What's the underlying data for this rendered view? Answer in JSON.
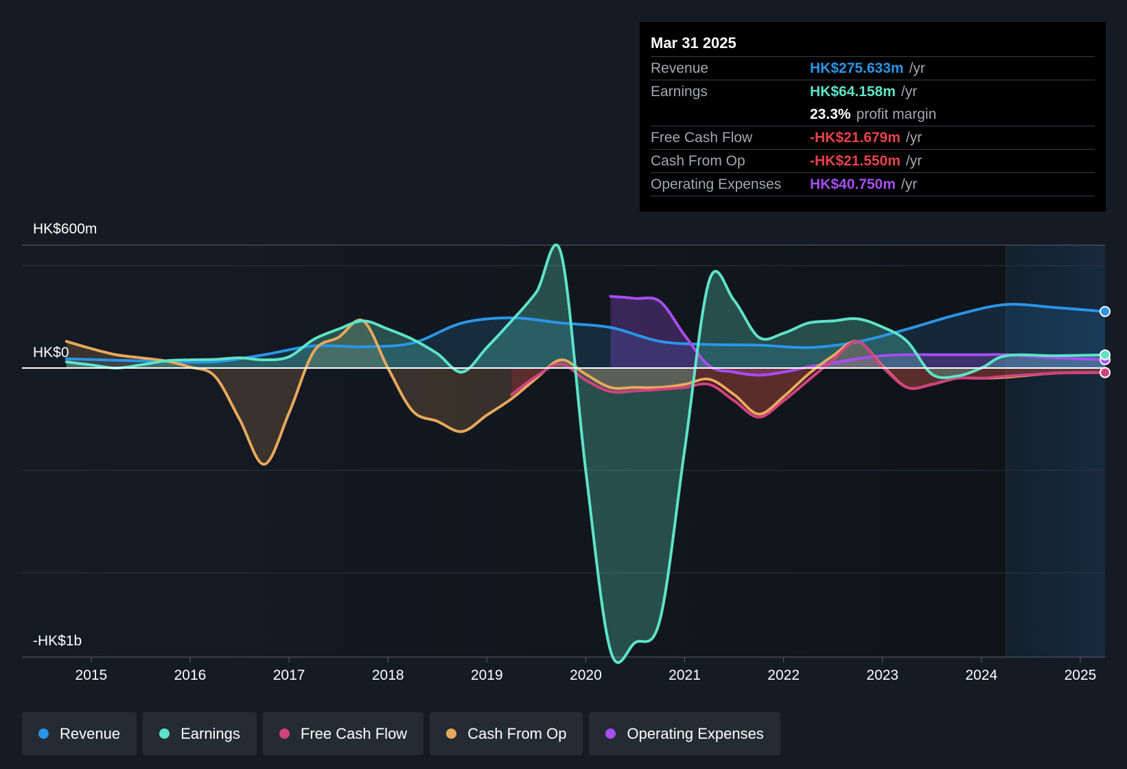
{
  "chart_data": {
    "type": "area",
    "y_axis_labels": {
      "top": "HK$600m",
      "zero": "HK$0",
      "bottom": "-HK$1b"
    },
    "ylim": [
      -1400,
      600
    ],
    "xlim": [
      2014.3,
      2025.25
    ],
    "x_ticks": [
      "2015",
      "2016",
      "2017",
      "2018",
      "2019",
      "2020",
      "2021",
      "2022",
      "2023",
      "2024",
      "2025"
    ],
    "forecast_start": 2024.25,
    "series": [
      {
        "name": "Revenue",
        "color": "#2b95e8",
        "x": [
          2014.75,
          2015.25,
          2015.75,
          2016.25,
          2016.75,
          2017.25,
          2017.75,
          2018.25,
          2018.75,
          2019.25,
          2019.75,
          2020.25,
          2020.75,
          2021.25,
          2021.75,
          2022.25,
          2022.75,
          2023.25,
          2023.75,
          2024.25,
          2024.75,
          2025.25
        ],
        "y": [
          45,
          38,
          32,
          30,
          65,
          108,
          104,
          122,
          220,
          245,
          220,
          198,
          130,
          115,
          112,
          100,
          128,
          190,
          260,
          310,
          295,
          276
        ]
      },
      {
        "name": "Earnings",
        "color": "#5ee3c8",
        "x": [
          2014.75,
          2015.0,
          2015.25,
          2015.5,
          2015.75,
          2016.0,
          2016.25,
          2016.5,
          2016.75,
          2017.0,
          2017.25,
          2017.5,
          2017.75,
          2018.0,
          2018.25,
          2018.5,
          2018.75,
          2019.0,
          2019.25,
          2019.5,
          2019.75,
          2020.0,
          2020.25,
          2020.5,
          2020.75,
          2021.0,
          2021.25,
          2021.5,
          2021.75,
          2022.0,
          2022.25,
          2022.5,
          2022.75,
          2023.0,
          2023.25,
          2023.5,
          2023.75,
          2024.0,
          2024.25,
          2024.75,
          2025.25
        ],
        "y": [
          30,
          15,
          0,
          15,
          35,
          40,
          42,
          50,
          40,
          55,
          140,
          190,
          230,
          190,
          140,
          70,
          -20,
          100,
          230,
          370,
          560,
          -500,
          -1380,
          -1340,
          -1230,
          -400,
          430,
          330,
          150,
          170,
          220,
          230,
          240,
          200,
          130,
          -30,
          -40,
          0,
          60,
          60,
          64
        ]
      },
      {
        "name": "Free Cash Flow",
        "color": "#d0427f",
        "x": [
          2019.25,
          2019.5,
          2019.75,
          2020.0,
          2020.25,
          2020.5,
          2020.75,
          2021.0,
          2021.25,
          2021.5,
          2021.75,
          2022.0,
          2022.25,
          2022.5,
          2022.75,
          2023.0,
          2023.25,
          2023.5,
          2023.75,
          2024.0,
          2024.25,
          2024.75,
          2025.25
        ],
        "y": [
          -130,
          -40,
          20,
          -60,
          -115,
          -112,
          -105,
          -95,
          -80,
          -160,
          -240,
          -160,
          -60,
          40,
          130,
          5,
          -95,
          -80,
          -50,
          -50,
          -40,
          -25,
          -22
        ]
      },
      {
        "name": "Cash From Op",
        "color": "#e8a95c",
        "x": [
          2014.75,
          2015.0,
          2015.25,
          2015.5,
          2015.75,
          2016.0,
          2016.25,
          2016.5,
          2016.75,
          2017.0,
          2017.25,
          2017.5,
          2017.75,
          2018.0,
          2018.25,
          2018.5,
          2018.75,
          2019.0,
          2019.25,
          2019.5,
          2019.75,
          2020.0,
          2020.25,
          2020.5,
          2020.75,
          2021.0,
          2021.25,
          2021.5,
          2021.75,
          2022.0,
          2022.25,
          2022.5,
          2022.75,
          2023.0,
          2023.25,
          2023.5,
          2023.75,
          2024.0,
          2024.25,
          2024.75,
          2025.25
        ],
        "y": [
          130,
          95,
          65,
          50,
          35,
          5,
          -40,
          -250,
          -470,
          -220,
          80,
          150,
          230,
          0,
          -210,
          -260,
          -310,
          -230,
          -150,
          -50,
          40,
          -30,
          -95,
          -95,
          -95,
          -80,
          -55,
          -130,
          -225,
          -140,
          -30,
          60,
          130,
          10,
          -95,
          -80,
          -50,
          -50,
          -45,
          -25,
          -22
        ]
      },
      {
        "name": "Operating Expenses",
        "color": "#a74ef0",
        "x": [
          2020.25,
          2020.5,
          2020.75,
          2021.0,
          2021.25,
          2021.5,
          2021.75,
          2022.0,
          2022.25,
          2022.5,
          2022.75,
          2023.0,
          2023.25,
          2023.5,
          2023.75,
          2024.0,
          2024.25,
          2024.75,
          2025.25
        ],
        "y": [
          350,
          340,
          325,
          160,
          10,
          -20,
          -35,
          -20,
          5,
          25,
          45,
          60,
          65,
          65,
          65,
          65,
          65,
          50,
          41
        ]
      }
    ]
  },
  "tooltip": {
    "date": "Mar 31 2025",
    "rows": [
      {
        "label": "Revenue",
        "value": "HK$275.633m",
        "unit": "/yr",
        "color": "#2b95e8"
      },
      {
        "label": "Earnings",
        "value": "HK$64.158m",
        "unit": "/yr",
        "color": "#5ee3c8"
      },
      {
        "label": "",
        "value": "23.3%",
        "unit": "profit margin",
        "color": "#ffffff"
      },
      {
        "label": "Free Cash Flow",
        "value": "-HK$21.679m",
        "unit": "/yr",
        "color": "#e8424c"
      },
      {
        "label": "Cash From Op",
        "value": "-HK$21.550m",
        "unit": "/yr",
        "color": "#e8424c"
      },
      {
        "label": "Operating Expenses",
        "value": "HK$40.750m",
        "unit": "/yr",
        "color": "#a74ef0"
      }
    ]
  },
  "legend": [
    {
      "label": "Revenue",
      "color": "#2b95e8"
    },
    {
      "label": "Earnings",
      "color": "#5ee3c8"
    },
    {
      "label": "Free Cash Flow",
      "color": "#d0427f"
    },
    {
      "label": "Cash From Op",
      "color": "#e8a95c"
    },
    {
      "label": "Operating Expenses",
      "color": "#a74ef0"
    }
  ]
}
